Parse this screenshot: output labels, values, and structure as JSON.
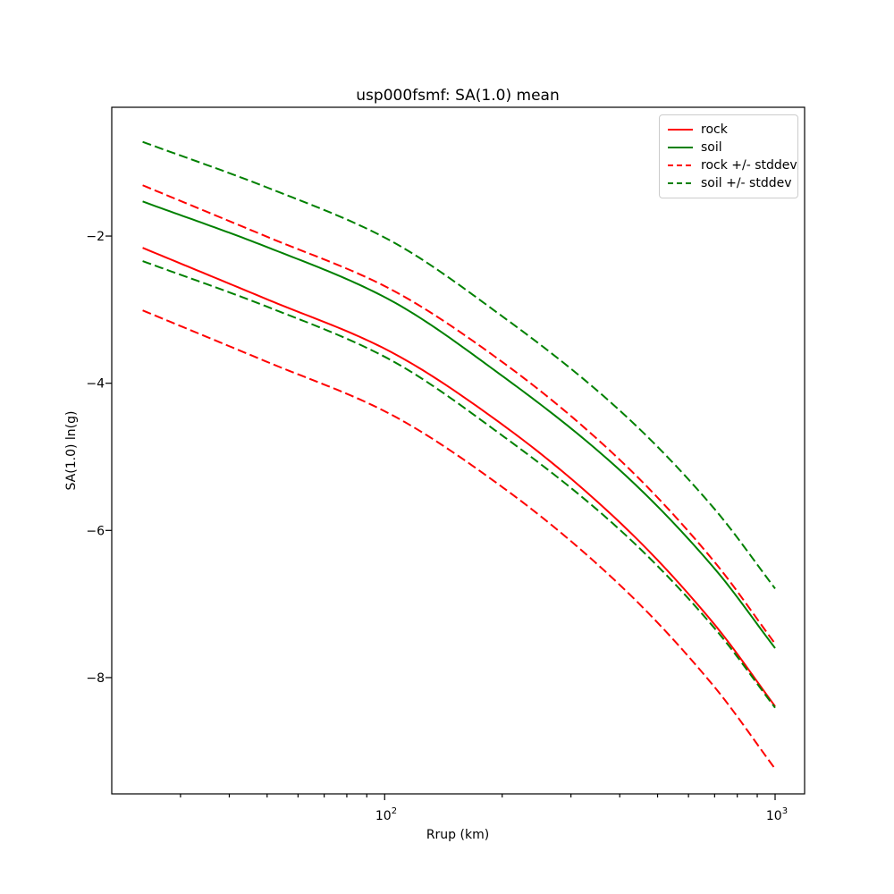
{
  "title": "usp000fsmf: SA(1.0) mean",
  "axes": {
    "xlabel": "Rrup (km)",
    "ylabel": "SA(1.0) ln(g)",
    "x_tick_labels": [
      {
        "base": "10",
        "exp": "2"
      },
      {
        "base": "10",
        "exp": "3"
      }
    ],
    "y_tick_labels": [
      "−2",
      "−4",
      "−6",
      "−8"
    ]
  },
  "legend": {
    "items": [
      {
        "label": "rock",
        "color": "#ff0000",
        "style": "solid"
      },
      {
        "label": "soil",
        "color": "#008000",
        "style": "solid"
      },
      {
        "label": "rock +/- stddev",
        "color": "#ff0000",
        "style": "dashed"
      },
      {
        "label": "soil +/- stddev",
        "color": "#008000",
        "style": "dashed"
      }
    ]
  },
  "chart_data": {
    "type": "line",
    "title": "usp000fsmf: SA(1.0) mean",
    "xlabel": "Rrup (km)",
    "ylabel": "SA(1.0) ln(g)",
    "x_scale": "log",
    "y_scale": "linear",
    "xlim": [
      20,
      1190
    ],
    "ylim": [
      -9.58,
      -0.25
    ],
    "x_major_ticks": [
      100,
      1000
    ],
    "x_minor_ticks": [
      30,
      40,
      50,
      60,
      70,
      80,
      90,
      200,
      300,
      400,
      500,
      600,
      700,
      800,
      900
    ],
    "y_major_ticks": [
      -2,
      -4,
      -6,
      -8
    ],
    "grid": false,
    "legend_position": "upper right",
    "series": [
      {
        "name": "rock",
        "label": "rock",
        "color": "#ff0000",
        "style": "solid",
        "x": [
          24,
          50,
          100,
          200,
          400,
          700,
          1000
        ],
        "y": [
          -2.16,
          -2.86,
          -3.53,
          -4.56,
          -5.89,
          -7.28,
          -8.39
        ]
      },
      {
        "name": "soil",
        "label": "soil",
        "color": "#008000",
        "style": "solid",
        "x": [
          24,
          50,
          100,
          200,
          400,
          700,
          1000
        ],
        "y": [
          -1.53,
          -2.15,
          -2.83,
          -3.9,
          -5.18,
          -6.52,
          -7.6
        ]
      },
      {
        "name": "rock_stddev",
        "label": "rock +/- stddev",
        "color": "#ff0000",
        "style": "dashed",
        "band_of": "rock",
        "sigma": 0.85
      },
      {
        "name": "soil_stddev",
        "label": "soil +/- stddev",
        "color": "#008000",
        "style": "dashed",
        "band_of": "soil",
        "sigma": 0.81
      }
    ]
  }
}
